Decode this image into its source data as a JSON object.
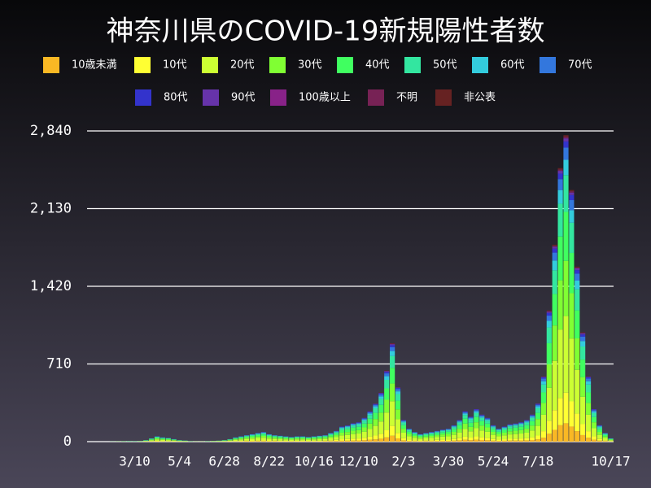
{
  "chart_data": {
    "type": "stacked-bar",
    "title": "神奈川県のCOVID-19新規陽性者数",
    "categories": [
      null,
      null,
      null,
      null,
      null,
      null,
      null,
      null,
      "3/10",
      null,
      null,
      null,
      null,
      null,
      null,
      null,
      "5/4",
      null,
      null,
      null,
      null,
      null,
      null,
      null,
      "6/28",
      null,
      null,
      null,
      null,
      null,
      null,
      null,
      "8/22",
      null,
      null,
      null,
      null,
      null,
      null,
      null,
      "10/16",
      null,
      null,
      null,
      null,
      null,
      null,
      null,
      "12/10",
      null,
      null,
      null,
      null,
      null,
      null,
      null,
      "2/3",
      null,
      null,
      null,
      null,
      null,
      null,
      null,
      "3/30",
      null,
      null,
      null,
      null,
      null,
      null,
      null,
      "5/24",
      null,
      null,
      null,
      null,
      null,
      null,
      null,
      "7/18",
      null,
      null,
      null,
      null,
      null,
      null,
      null,
      null,
      null,
      null,
      null,
      null,
      "10/17"
    ],
    "ylim": [
      0,
      2840
    ],
    "yticks": [
      0,
      {
        "value": 710,
        "label": "710"
      },
      {
        "value": 1420,
        "label": "1,420"
      },
      {
        "value": 2130,
        "label": "2,130"
      },
      {
        "value": 2840,
        "label": "2,840"
      }
    ],
    "grid": true,
    "series": [
      {
        "name": "10歳未満",
        "color": "#f9b824",
        "values": [
          0,
          0,
          0,
          0,
          0,
          0,
          0,
          0,
          0,
          0,
          1,
          2,
          3,
          2,
          2,
          2,
          1,
          1,
          0,
          0,
          0,
          0,
          0,
          1,
          1,
          2,
          2,
          3,
          4,
          4,
          5,
          5,
          4,
          4,
          3,
          3,
          3,
          3,
          3,
          3,
          3,
          3,
          4,
          5,
          6,
          8,
          9,
          10,
          11,
          13,
          17,
          21,
          27,
          39,
          54,
          30,
          12,
          7,
          5,
          4,
          5,
          5,
          6,
          7,
          7,
          9,
          12,
          17,
          14,
          18,
          15,
          13,
          9,
          7,
          8,
          10,
          10,
          11,
          12,
          15,
          21,
          36,
          72,
          108,
          150,
          168,
          138,
          96,
          60,
          36,
          18,
          9,
          5,
          2
        ]
      },
      {
        "name": "10代",
        "color": "#ffff33",
        "values": [
          0,
          0,
          0,
          0,
          0,
          0,
          0,
          0,
          0,
          1,
          1,
          3,
          5,
          4,
          3,
          2,
          1,
          1,
          0,
          0,
          0,
          0,
          1,
          1,
          1,
          2,
          4,
          5,
          6,
          7,
          8,
          9,
          7,
          6,
          5,
          5,
          4,
          5,
          5,
          4,
          5,
          5,
          6,
          8,
          10,
          14,
          15,
          17,
          18,
          22,
          28,
          35,
          45,
          65,
          90,
          50,
          20,
          12,
          9,
          7,
          8,
          9,
          10,
          11,
          12,
          15,
          20,
          28,
          23,
          30,
          25,
          22,
          15,
          12,
          14,
          16,
          17,
          18,
          20,
          25,
          35,
          60,
          120,
          180,
          250,
          280,
          230,
          160,
          100,
          60,
          30,
          15,
          8,
          3
        ]
      },
      {
        "name": "20代",
        "color": "#ccff33",
        "values": [
          0,
          0,
          0,
          0,
          0,
          1,
          1,
          1,
          1,
          2,
          4,
          7,
          12,
          10,
          9,
          6,
          4,
          2,
          1,
          1,
          1,
          1,
          2,
          2,
          4,
          6,
          10,
          12,
          15,
          17,
          20,
          22,
          17,
          15,
          14,
          12,
          11,
          12,
          12,
          11,
          12,
          14,
          15,
          20,
          25,
          35,
          37,
          42,
          45,
          55,
          70,
          88,
          112,
          162,
          225,
          125,
          50,
          30,
          22,
          17,
          20,
          22,
          25,
          28,
          30,
          38,
          50,
          70,
          57,
          75,
          62,
          55,
          38,
          30,
          35,
          40,
          42,
          45,
          50,
          62,
          88,
          150,
          300,
          450,
          625,
          700,
          575,
          400,
          250,
          150,
          75,
          38,
          20,
          8
        ]
      },
      {
        "name": "30代",
        "color": "#80ff33",
        "values": [
          0,
          0,
          0,
          0,
          0,
          0,
          1,
          1,
          1,
          1,
          3,
          5,
          9,
          7,
          6,
          4,
          3,
          2,
          1,
          1,
          1,
          1,
          1,
          2,
          3,
          4,
          7,
          9,
          11,
          13,
          14,
          16,
          13,
          11,
          10,
          9,
          8,
          9,
          9,
          8,
          9,
          10,
          11,
          14,
          18,
          25,
          27,
          31,
          32,
          40,
          50,
          63,
          81,
          117,
          162,
          90,
          36,
          22,
          16,
          13,
          14,
          16,
          18,
          20,
          22,
          27,
          36,
          50,
          41,
          54,
          45,
          40,
          27,
          22,
          25,
          29,
          31,
          32,
          36,
          45,
          63,
          108,
          216,
          324,
          450,
          504,
          414,
          288,
          180,
          108,
          54,
          27,
          14,
          5
        ]
      },
      {
        "name": "40代",
        "color": "#40ff60",
        "values": [
          0,
          0,
          0,
          0,
          1,
          1,
          1,
          1,
          1,
          1,
          2,
          5,
          8,
          6,
          6,
          4,
          2,
          2,
          1,
          0,
          0,
          1,
          1,
          2,
          2,
          4,
          6,
          8,
          10,
          11,
          13,
          14,
          11,
          10,
          9,
          8,
          7,
          8,
          8,
          7,
          8,
          9,
          10,
          13,
          16,
          22,
          24,
          27,
          29,
          35,
          45,
          56,
          72,
          104,
          144,
          80,
          32,
          19,
          14,
          11,
          13,
          14,
          16,
          18,
          19,
          24,
          32,
          45,
          37,
          48,
          40,
          35,
          24,
          19,
          22,
          26,
          27,
          29,
          32,
          40,
          56,
          96,
          192,
          288,
          400,
          448,
          368,
          256,
          160,
          96,
          48,
          24,
          13,
          5
        ]
      },
      {
        "name": "50代",
        "color": "#33e6a0",
        "values": [
          0,
          0,
          0,
          0,
          0,
          0,
          1,
          1,
          1,
          1,
          2,
          4,
          6,
          5,
          4,
          3,
          2,
          1,
          1,
          0,
          0,
          1,
          1,
          1,
          2,
          3,
          5,
          6,
          7,
          8,
          10,
          11,
          8,
          7,
          7,
          6,
          5,
          6,
          6,
          5,
          6,
          7,
          7,
          10,
          12,
          17,
          18,
          20,
          22,
          26,
          34,
          42,
          54,
          78,
          108,
          60,
          24,
          14,
          11,
          8,
          10,
          11,
          12,
          13,
          14,
          18,
          24,
          34,
          28,
          36,
          30,
          26,
          18,
          14,
          17,
          19,
          20,
          22,
          24,
          30,
          42,
          72,
          144,
          216,
          300,
          336,
          276,
          192,
          120,
          72,
          36,
          18,
          10,
          4
        ]
      },
      {
        "name": "60代",
        "color": "#33ccdd",
        "values": [
          0,
          0,
          0,
          0,
          0,
          0,
          0,
          1,
          0,
          0,
          1,
          2,
          3,
          2,
          2,
          1,
          1,
          1,
          0,
          0,
          0,
          0,
          0,
          0,
          1,
          1,
          2,
          3,
          3,
          4,
          4,
          5,
          4,
          3,
          3,
          3,
          2,
          3,
          3,
          2,
          3,
          3,
          3,
          4,
          5,
          7,
          8,
          9,
          9,
          11,
          14,
          18,
          23,
          33,
          45,
          25,
          10,
          6,
          5,
          4,
          4,
          5,
          5,
          6,
          6,
          8,
          10,
          14,
          12,
          15,
          12,
          11,
          8,
          6,
          7,
          8,
          8,
          9,
          10,
          12,
          18,
          30,
          60,
          90,
          125,
          140,
          115,
          80,
          50,
          30,
          15,
          8,
          4,
          2
        ]
      },
      {
        "name": "70代",
        "color": "#3377dd",
        "values": [
          0,
          0,
          0,
          0,
          0,
          0,
          0,
          0,
          1,
          1,
          1,
          1,
          2,
          2,
          1,
          1,
          1,
          0,
          0,
          0,
          0,
          0,
          0,
          0,
          0,
          1,
          2,
          2,
          2,
          3,
          3,
          4,
          3,
          2,
          2,
          2,
          2,
          2,
          2,
          2,
          2,
          2,
          2,
          3,
          4,
          6,
          6,
          7,
          7,
          9,
          11,
          14,
          18,
          26,
          36,
          20,
          8,
          5,
          4,
          3,
          3,
          4,
          4,
          4,
          5,
          6,
          8,
          11,
          9,
          12,
          10,
          9,
          6,
          5,
          6,
          6,
          7,
          7,
          8,
          10,
          14,
          24,
          48,
          72,
          100,
          112,
          92,
          64,
          40,
          24,
          12,
          6,
          3,
          1
        ]
      },
      {
        "name": "80代",
        "color": "#3333cc",
        "values": [
          0,
          0,
          0,
          0,
          0,
          0,
          0,
          0,
          0,
          0,
          0,
          0,
          1,
          1,
          1,
          1,
          0,
          0,
          0,
          0,
          0,
          0,
          0,
          0,
          0,
          0,
          1,
          1,
          1,
          1,
          2,
          2,
          1,
          1,
          1,
          1,
          1,
          1,
          1,
          1,
          1,
          1,
          1,
          2,
          2,
          3,
          3,
          3,
          4,
          4,
          6,
          7,
          9,
          13,
          18,
          10,
          4,
          2,
          2,
          1,
          2,
          2,
          2,
          2,
          2,
          3,
          4,
          6,
          5,
          6,
          5,
          4,
          3,
          2,
          3,
          3,
          3,
          4,
          4,
          5,
          7,
          12,
          24,
          36,
          50,
          56,
          46,
          32,
          20,
          12,
          6,
          3,
          2,
          1
        ]
      },
      {
        "name": "90代",
        "color": "#6633aa",
        "values": [
          0,
          0,
          0,
          0,
          0,
          0,
          0,
          0,
          0,
          0,
          0,
          0,
          0,
          0,
          0,
          0,
          0,
          0,
          0,
          0,
          0,
          0,
          0,
          0,
          0,
          0,
          0,
          0,
          0,
          0,
          1,
          1,
          0,
          0,
          0,
          0,
          0,
          0,
          0,
          0,
          0,
          1,
          1,
          1,
          1,
          1,
          2,
          2,
          2,
          2,
          3,
          4,
          5,
          7,
          9,
          5,
          2,
          1,
          1,
          1,
          1,
          1,
          1,
          1,
          1,
          1,
          2,
          3,
          2,
          3,
          3,
          2,
          2,
          1,
          1,
          2,
          2,
          2,
          2,
          3,
          4,
          6,
          12,
          18,
          25,
          28,
          23,
          16,
          10,
          6,
          3,
          2,
          1,
          0
        ]
      },
      {
        "name": "100歳以上",
        "color": "#882288",
        "values": [
          0,
          0,
          0,
          0,
          0,
          0,
          0,
          0,
          0,
          0,
          0,
          0,
          0,
          0,
          0,
          0,
          0,
          0,
          0,
          0,
          0,
          0,
          0,
          0,
          0,
          0,
          0,
          0,
          0,
          0,
          0,
          0,
          0,
          0,
          0,
          0,
          0,
          0,
          0,
          0,
          0,
          0,
          0,
          0,
          0,
          0,
          0,
          0,
          0,
          0,
          0,
          0,
          0,
          0,
          0,
          0,
          0,
          0,
          0,
          0,
          0,
          0,
          0,
          0,
          0,
          0,
          0,
          0,
          0,
          0,
          0,
          0,
          0,
          0,
          0,
          0,
          0,
          0,
          0,
          0,
          0,
          0,
          0,
          0,
          1,
          1,
          0,
          0,
          0,
          0,
          0,
          0,
          0,
          0
        ]
      },
      {
        "name": "不明",
        "color": "#772255",
        "values": [
          0,
          0,
          0,
          0,
          0,
          0,
          0,
          0,
          0,
          0,
          0,
          0,
          0,
          0,
          0,
          0,
          0,
          0,
          0,
          0,
          0,
          0,
          0,
          0,
          0,
          0,
          0,
          0,
          0,
          0,
          0,
          0,
          0,
          0,
          0,
          0,
          0,
          0,
          0,
          0,
          0,
          0,
          0,
          0,
          0,
          0,
          0,
          0,
          0,
          0,
          0,
          0,
          2,
          3,
          5,
          0,
          0,
          0,
          0,
          0,
          0,
          0,
          0,
          0,
          0,
          0,
          0,
          0,
          0,
          0,
          0,
          0,
          0,
          0,
          0,
          0,
          0,
          0,
          0,
          0,
          0,
          0,
          6,
          9,
          12,
          14,
          12,
          8,
          5,
          0,
          0,
          0,
          0,
          0
        ]
      },
      {
        "name": "非公表",
        "color": "#662222",
        "values": [
          0,
          0,
          0,
          0,
          0,
          0,
          0,
          0,
          0,
          0,
          0,
          0,
          0,
          0,
          0,
          0,
          0,
          0,
          0,
          0,
          0,
          0,
          0,
          0,
          0,
          0,
          0,
          0,
          0,
          0,
          0,
          0,
          0,
          0,
          0,
          0,
          0,
          0,
          0,
          0,
          0,
          0,
          0,
          0,
          0,
          0,
          0,
          0,
          0,
          0,
          1,
          2,
          2,
          3,
          4,
          2,
          0,
          0,
          0,
          0,
          0,
          0,
          0,
          0,
          0,
          0,
          0,
          0,
          0,
          0,
          0,
          0,
          0,
          0,
          0,
          0,
          0,
          0,
          0,
          0,
          0,
          3,
          6,
          9,
          12,
          14,
          11,
          8,
          5,
          3,
          0,
          0,
          0,
          0
        ]
      }
    ]
  }
}
